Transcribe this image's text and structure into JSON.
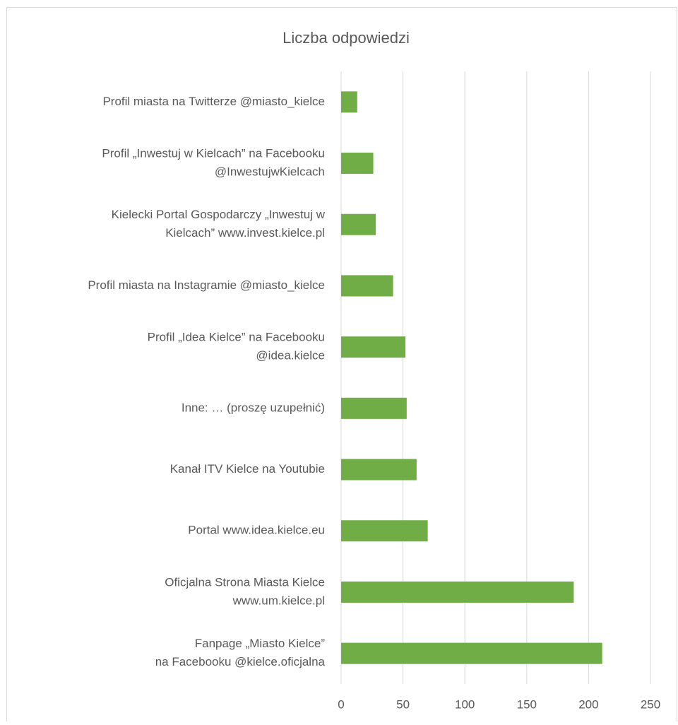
{
  "chart_data": {
    "type": "bar",
    "orientation": "horizontal",
    "title": "Liczba odpowiedzi",
    "categories": [
      [
        "Profil miasta na Twitterze @miasto_kielce"
      ],
      [
        "Profil „Inwestuj w Kielcach” na Facebooku",
        "@InwestujwKielcach"
      ],
      [
        "Kielecki Portal Gospodarczy „Inwestuj w",
        "Kielcach” www.invest.kielce.pl"
      ],
      [
        "Profil miasta na Instagramie @miasto_kielce"
      ],
      [
        "Profil „Idea Kielce” na Facebooku",
        "@idea.kielce"
      ],
      [
        "Inne: … (proszę uzupełnić)"
      ],
      [
        "Kanał ITV Kielce na Youtubie"
      ],
      [
        "Portal www.idea.kielce.eu"
      ],
      [
        "Oficjalna Strona Miasta Kielce",
        "www.um.kielce.pl"
      ],
      [
        "Fanpage „Miasto Kielce”",
        "na Facebooku @kielce.oficjalna"
      ]
    ],
    "values": [
      13,
      26,
      28,
      42,
      52,
      53,
      61,
      70,
      188,
      211
    ],
    "color": "#70ad47",
    "xlim": [
      0,
      250
    ],
    "xticks": [
      0,
      50,
      100,
      150,
      200,
      250
    ],
    "grid": true
  }
}
